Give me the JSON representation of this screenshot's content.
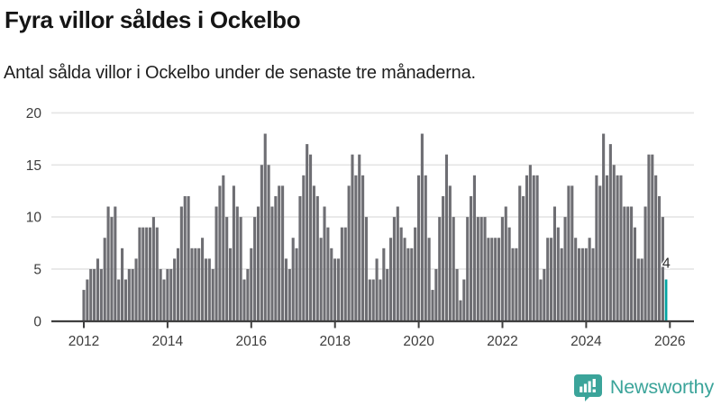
{
  "header": {
    "title": "Fyra villor såldes i Ockelbo",
    "subtitle": "Antal sålda villor i Ockelbo under de senaste tre månaderna."
  },
  "chart_data": {
    "type": "bar",
    "title": "Fyra villor såldes i Ockelbo",
    "subtitle": "Antal sålda villor i Ockelbo under de senaste tre månaderna.",
    "unit": "sålda villor per 3 månader",
    "x_start": "2012-01",
    "x_end": "2025-12",
    "frequency": "monthly",
    "values": [
      3,
      4,
      5,
      5,
      6,
      5,
      8,
      11,
      10,
      11,
      4,
      7,
      4,
      5,
      5,
      6,
      9,
      9,
      9,
      9,
      10,
      9,
      5,
      4,
      5,
      5,
      6,
      7,
      11,
      12,
      12,
      7,
      7,
      7,
      8,
      6,
      6,
      5,
      11,
      13,
      14,
      10,
      7,
      13,
      11,
      10,
      4,
      5,
      7,
      10,
      11,
      15,
      18,
      15,
      11,
      12,
      13,
      13,
      6,
      5,
      8,
      7,
      12,
      14,
      17,
      16,
      13,
      12,
      8,
      11,
      9,
      7,
      6,
      6,
      9,
      9,
      13,
      16,
      14,
      16,
      14,
      10,
      4,
      4,
      6,
      4,
      7,
      5,
      8,
      10,
      11,
      9,
      8,
      7,
      7,
      9,
      14,
      18,
      14,
      8,
      3,
      5,
      10,
      12,
      16,
      13,
      10,
      5,
      2,
      4,
      10,
      12,
      14,
      10,
      10,
      10,
      8,
      8,
      8,
      8,
      10,
      11,
      9,
      7,
      7,
      13,
      12,
      14,
      15,
      14,
      14,
      4,
      5,
      8,
      8,
      11,
      9,
      7,
      10,
      13,
      13,
      8,
      7,
      7,
      7,
      8,
      7,
      14,
      13,
      18,
      14,
      17,
      15,
      14,
      14,
      11,
      11,
      11,
      9,
      6,
      6,
      11,
      16,
      16,
      14,
      12,
      10,
      4
    ],
    "highlight": {
      "index": 167,
      "value": 4,
      "label": "4"
    },
    "ylim": [
      0,
      20
    ],
    "yticks": [
      0,
      5,
      10,
      15,
      20
    ],
    "xticks": [
      "2012",
      "2014",
      "2016",
      "2018",
      "2020",
      "2022",
      "2024",
      "2026"
    ],
    "grid": true,
    "legend": "none",
    "colors": {
      "bar": "#6e6e73",
      "highlight_bar": "#00a3a1",
      "gridline": "#e4e4e4",
      "axis": "#3f3f3f",
      "tick_label": "#3c3c3c",
      "value_label": "#2f2f2f"
    }
  },
  "footer": {
    "brand": "Newsworthy",
    "logo_icon": "newsworthy-speech-bubble-bar-chart",
    "brand_color": "#3ba49a"
  }
}
